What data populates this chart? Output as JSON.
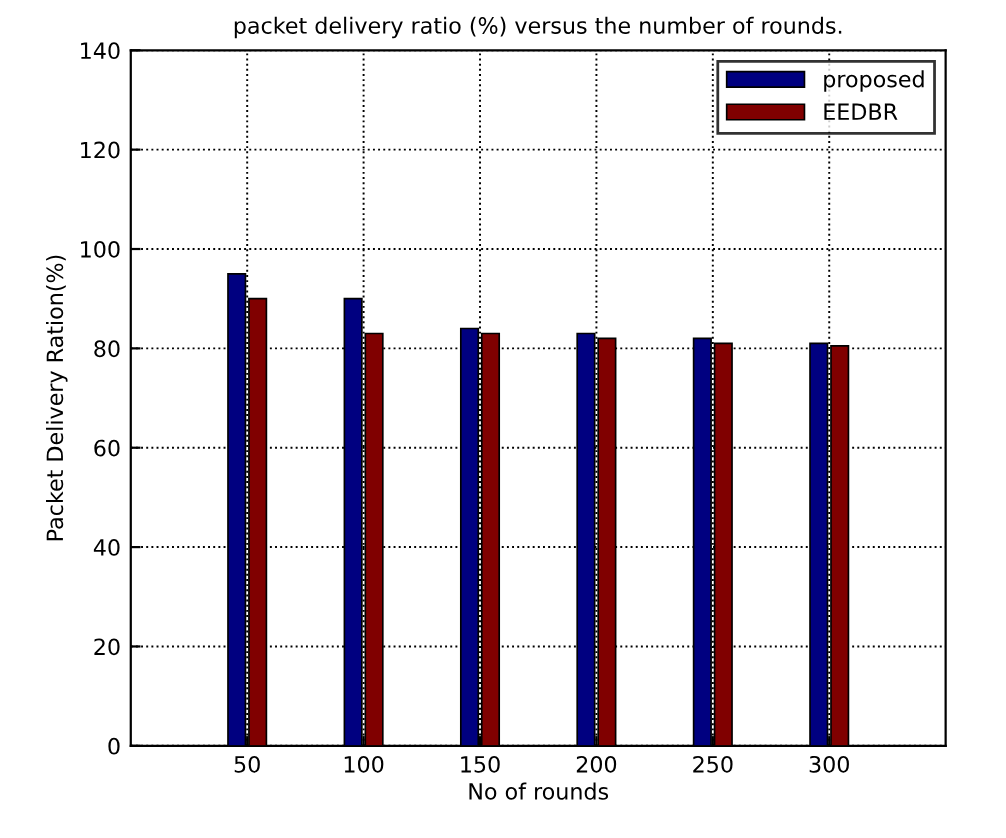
{
  "chart_data": {
    "type": "bar",
    "title": "packet delivery ratio (%) versus the number of rounds.",
    "xlabel": "No of rounds",
    "ylabel": "Packet Delivery Ration(%)",
    "x": [
      50,
      100,
      150,
      200,
      250,
      300
    ],
    "series": [
      {
        "name": "proposed",
        "color": "#000080",
        "values": [
          95,
          90,
          84,
          83,
          82,
          81
        ]
      },
      {
        "name": "EEDBR",
        "color": "#800000",
        "values": [
          90,
          83,
          83,
          82,
          81,
          80.5
        ]
      }
    ],
    "xlim": [
      0,
      350
    ],
    "xticks": [
      50,
      100,
      150,
      200,
      250,
      300
    ],
    "ylim": [
      0,
      140
    ],
    "yticks": [
      0,
      20,
      40,
      60,
      80,
      100,
      120,
      140
    ],
    "grid": true,
    "legend": "top right"
  }
}
